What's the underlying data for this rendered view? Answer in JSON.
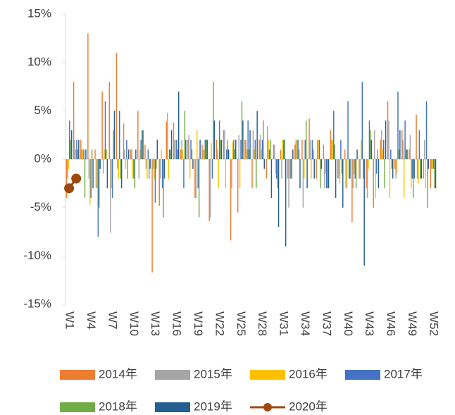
{
  "chart_data": {
    "type": "bar",
    "categories": [
      "W1",
      null,
      null,
      "W4",
      null,
      null,
      "W7",
      null,
      null,
      "W10",
      null,
      null,
      "W13",
      null,
      null,
      "W16",
      null,
      null,
      "W19",
      null,
      null,
      "W22",
      null,
      null,
      "W25",
      null,
      null,
      "W28",
      null,
      null,
      "W31",
      null,
      null,
      "W34",
      null,
      null,
      "W37",
      null,
      null,
      "W40",
      null,
      null,
      "W43",
      null,
      null,
      "W46",
      null,
      null,
      "W49",
      null,
      null,
      "W52"
    ],
    "ylim": [
      -15,
      15
    ],
    "yticks": [
      {
        "value": -15,
        "label": "-15%"
      },
      {
        "value": -10,
        "label": "-10%"
      },
      {
        "value": -5,
        "label": "-5%"
      },
      {
        "value": 0,
        "label": "0%"
      },
      {
        "value": 5,
        "label": "5%"
      },
      {
        "value": 10,
        "label": "10%"
      },
      {
        "value": 15,
        "label": "15%"
      }
    ],
    "grid": false,
    "legend": "bottom",
    "series": [
      {
        "name": "2014年",
        "color": "#ED7D31",
        "values": [
          -4,
          8,
          2,
          13,
          1,
          7,
          8,
          11,
          3.7,
          1,
          5,
          1.5,
          -11.7,
          -4.8,
          3.9,
          3.8,
          1,
          2,
          -4,
          1.5,
          -6.4,
          2,
          3,
          -8.4,
          -5.5,
          2,
          -3,
          2,
          -2,
          1.5,
          1,
          -2,
          1.5,
          2,
          4.2,
          -2,
          1.5,
          3,
          -2,
          1,
          -6.5,
          -2,
          -3,
          -5,
          2,
          6,
          -1,
          3,
          1,
          4.6,
          -2,
          -3
        ]
      },
      {
        "name": "2015年",
        "color": "#A5A5A5",
        "values": [
          -2,
          2,
          1,
          -2,
          -3,
          -1.5,
          -7.6,
          -1,
          1,
          1,
          -2,
          -1,
          -1,
          -2,
          4.8,
          2,
          2,
          2.5,
          -4,
          1,
          -6,
          1,
          3,
          -3,
          2.5,
          2,
          3,
          2.5,
          3.4,
          1.5,
          -2,
          -5,
          2,
          -5,
          2,
          2,
          -3,
          2,
          -2,
          -3,
          -3,
          -2,
          -4,
          3,
          3,
          4,
          -2,
          2,
          2.5,
          -2,
          2,
          -1
        ]
      },
      {
        "name": "2016年",
        "color": "#FFC000",
        "values": [
          -1,
          1,
          1,
          -4.7,
          -3,
          1,
          -3,
          -2,
          -1,
          -2,
          1,
          -2,
          -2,
          1,
          -2,
          2,
          1,
          -2,
          3,
          1,
          1.7,
          -3,
          -3,
          1.8,
          -3,
          1,
          1,
          1,
          2,
          -1.5,
          2,
          -2,
          2,
          -2,
          -2,
          2,
          -1.5,
          2,
          -2.5,
          -3,
          -1.5,
          2,
          -1,
          -4,
          1,
          -4,
          -1.5,
          -4,
          -3,
          -2.5,
          -3,
          -1
        ]
      },
      {
        "name": "2017年",
        "color": "#4472C4",
        "values": [
          4,
          2,
          1,
          -4,
          -8,
          6,
          -4,
          5,
          2,
          -2,
          2,
          1,
          -4.5,
          -3,
          1,
          2,
          -3,
          2,
          -3,
          2,
          -2,
          4,
          1,
          2,
          2,
          4,
          2,
          2,
          1,
          -2,
          2,
          -2,
          2,
          2,
          2,
          2,
          -3,
          5,
          2,
          6,
          -2,
          8,
          4,
          -1.5,
          2,
          1,
          7,
          4,
          -2,
          3,
          6,
          -1
        ]
      },
      {
        "name": "2018年",
        "color": "#70AD47",
        "values": [
          2,
          1,
          -4,
          1,
          -5,
          1,
          3,
          -2,
          -2,
          -3,
          3,
          -2,
          -1,
          -6,
          1,
          1,
          5,
          1,
          -6,
          2,
          8,
          2,
          2,
          1,
          6,
          1,
          -3,
          4,
          2,
          -3,
          2,
          -2,
          1,
          4,
          1,
          -3,
          -3,
          1.5,
          -1.5,
          -2,
          -3,
          -2,
          3,
          1,
          -3,
          -1,
          1,
          1,
          -4,
          -2,
          -5,
          -3
        ]
      },
      {
        "name": "2019年",
        "color": "#255E91",
        "values": [
          3,
          2,
          1,
          -3,
          -1,
          -3,
          5,
          -3,
          1,
          1,
          3,
          -1,
          2,
          -2,
          3,
          7,
          2,
          -1,
          2,
          2,
          4,
          2,
          1,
          2,
          4,
          3,
          5,
          -1,
          -4,
          -7,
          -9,
          1,
          -3,
          -3,
          -2,
          -1,
          -3,
          -4,
          -5,
          -2,
          1,
          -11,
          2,
          -3,
          4,
          -2,
          3,
          1,
          -2,
          -2,
          -1,
          -3
        ]
      },
      {
        "name": "2020年",
        "color": "#9E480E",
        "type": "line",
        "values": [
          -3,
          -2,
          null,
          null,
          null,
          null,
          null,
          null,
          null,
          null,
          null,
          null,
          null,
          null,
          null,
          null,
          null,
          null,
          null,
          null,
          null,
          null,
          null,
          null,
          null,
          null,
          null,
          null,
          null,
          null,
          null,
          null,
          null,
          null,
          null,
          null,
          null,
          null,
          null,
          null,
          null,
          null,
          null,
          null,
          null,
          null,
          null,
          null,
          null,
          null,
          null,
          null
        ]
      }
    ]
  }
}
